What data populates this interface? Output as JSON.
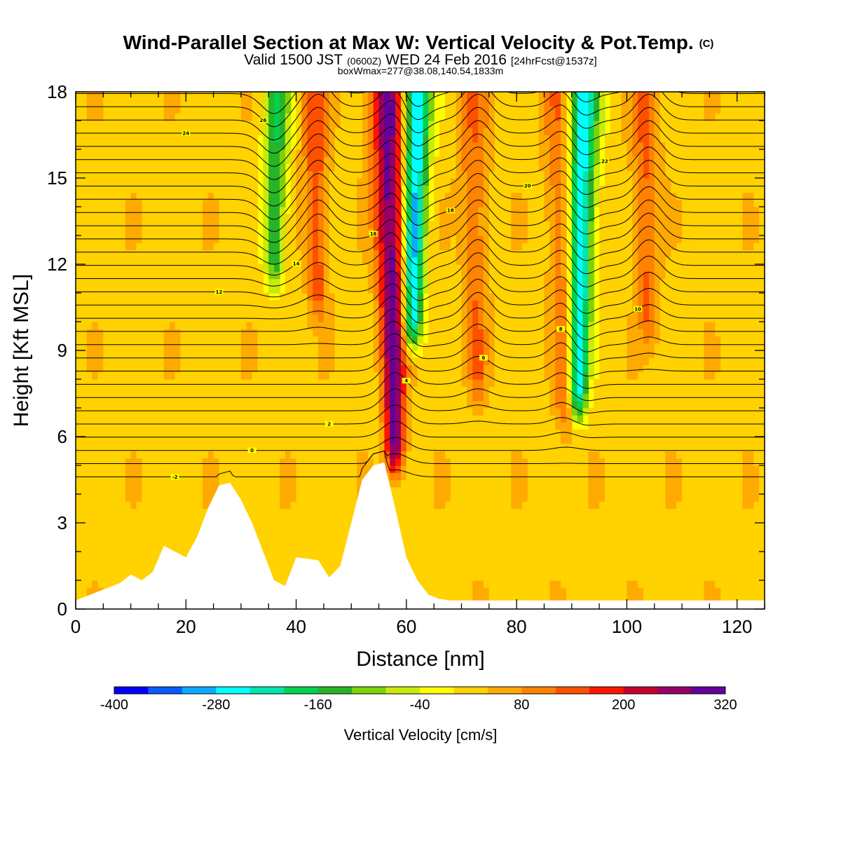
{
  "header": {
    "title": "Wind-Parallel Section at Max W: Vertical Velocity & Pot.Temp.",
    "title_suffix": "(C)",
    "valid_prefix": "Valid 1500 JST",
    "valid_z": "(0600Z)",
    "valid_date": "WED 24 Feb 2016",
    "valid_fcst": "[24hrFcst@1537z]",
    "box_info": "boxWmax=277@38.08,140.54,1833m"
  },
  "chart_data": {
    "type": "heatmap",
    "title": "Wind-Parallel Section at Max W: Vertical Velocity & Pot.Temp.",
    "xlabel": "Distance [nm]",
    "ylabel": "Height [Kft MSL]",
    "xlim": [
      0,
      125
    ],
    "ylim": [
      0,
      18
    ],
    "xticks": [
      0,
      20,
      40,
      60,
      80,
      100,
      120
    ],
    "yticks": [
      0,
      3,
      6,
      9,
      12,
      15,
      18
    ],
    "colorbar": {
      "label": "Vertical Velocity [cm/s]",
      "range": [
        -400,
        320
      ],
      "step": 40,
      "tick_labels": [
        "-400",
        "-280",
        "-160",
        "-40",
        "80",
        "200",
        "320"
      ],
      "colors": [
        "#0000ff",
        "#0a5aff",
        "#0aaaff",
        "#00ffff",
        "#00e6aa",
        "#00d250",
        "#28b428",
        "#7dd20a",
        "#c8eb0a",
        "#ffff00",
        "#ffd200",
        "#ffaa00",
        "#ff8200",
        "#ff5000",
        "#ff1400",
        "#c80032",
        "#960064",
        "#64009b"
      ]
    },
    "vertical_velocity_features": [
      {
        "x": 36,
        "top_kft": 18,
        "bottom_kft": 11,
        "w": -180
      },
      {
        "x": 44,
        "top_kft": 18,
        "bottom_kft": 10,
        "w": 120
      },
      {
        "x": 58,
        "top_kft": 18,
        "bottom_kft": 4.5,
        "w": 277
      },
      {
        "x": 61,
        "top_kft": 18,
        "bottom_kft": 9,
        "w": -320
      },
      {
        "x": 73,
        "top_kft": 18,
        "bottom_kft": 7,
        "w": 90
      },
      {
        "x": 89,
        "top_kft": 18,
        "bottom_kft": 6,
        "w": 110
      },
      {
        "x": 91,
        "top_kft": 18,
        "bottom_kft": 6.5,
        "w": -300
      },
      {
        "x": 104,
        "top_kft": 18,
        "bottom_kft": 9,
        "w": 100
      }
    ],
    "potential_temperature": {
      "unit": "C",
      "contour_labels": [
        "-2",
        "0",
        "2",
        "4",
        "6",
        "8",
        "10",
        "12",
        "14",
        "16",
        "18",
        "20",
        "22",
        "24",
        "26"
      ],
      "levels": [
        -2,
        -1,
        0,
        1,
        2,
        3,
        4,
        5,
        6,
        7,
        8,
        9,
        10,
        11,
        12,
        13,
        14,
        15,
        16,
        17,
        18,
        19,
        20,
        21,
        22,
        23,
        24,
        25,
        26,
        27
      ]
    },
    "terrain_kft": {
      "x": [
        0,
        4,
        8,
        10,
        12,
        14,
        16,
        20,
        22,
        24,
        26,
        28,
        30,
        32,
        34,
        36,
        38,
        40,
        44,
        46,
        48,
        50,
        52,
        54,
        56,
        58,
        60,
        62,
        64,
        66,
        68,
        80,
        100,
        125
      ],
      "height": [
        0.3,
        0.6,
        0.9,
        1.2,
        1.0,
        1.3,
        2.2,
        1.8,
        2.5,
        3.5,
        4.3,
        4.4,
        3.8,
        3.0,
        2.0,
        1.0,
        0.8,
        1.8,
        1.7,
        1.1,
        1.5,
        3.0,
        4.5,
        5.0,
        5.1,
        3.5,
        1.8,
        1.0,
        0.5,
        0.35,
        0.3,
        0.3,
        0.3,
        0.3
      ]
    }
  }
}
